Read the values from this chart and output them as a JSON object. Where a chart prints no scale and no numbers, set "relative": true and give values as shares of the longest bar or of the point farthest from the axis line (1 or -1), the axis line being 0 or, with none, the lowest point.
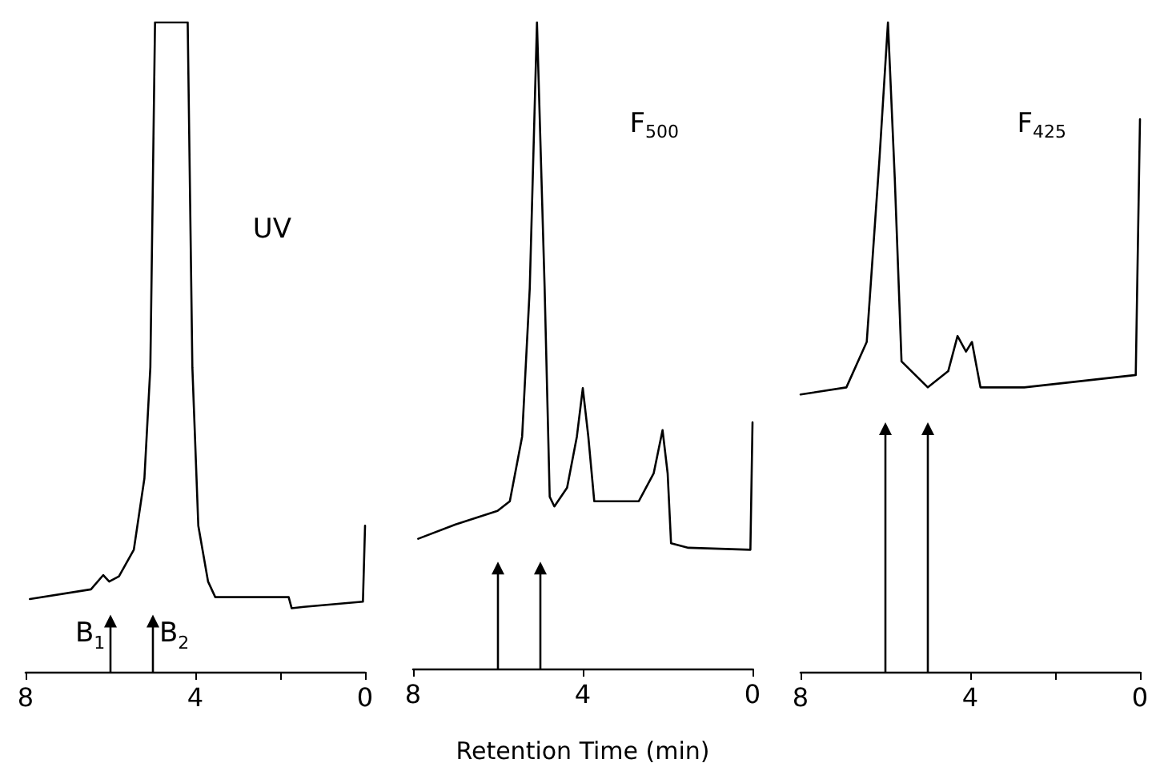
{
  "chart_data": [
    {
      "type": "line",
      "title": "UV",
      "relative": true,
      "marker": "none",
      "line_style": "solid",
      "xlim": [
        8,
        0
      ],
      "xticks": [
        8,
        4,
        {
          "value": 2,
          "label": null
        },
        0
      ],
      "ref_lines": [
        {
          "axis": "x",
          "value": 6.0,
          "label": "B$_{1}$"
        },
        {
          "axis": "x",
          "value": 5.0,
          "label": "B$_{2}$"
        }
      ],
      "series": [
        {
          "color": "#000000",
          "x": [
            7.9,
            6.46,
            6.17,
            6.03,
            5.8,
            5.45,
            5.2,
            5.06,
            4.95,
            4.18,
            4.07,
            3.93,
            3.7,
            3.53,
            1.8,
            1.73,
            1.44,
            0.05,
            0.0
          ],
          "values": [
            0.112,
            0.127,
            0.149,
            0.139,
            0.147,
            0.188,
            0.298,
            0.469,
            1.0,
            1.0,
            0.469,
            0.225,
            0.139,
            0.115,
            0.115,
            0.098,
            0.1,
            0.108,
            0.225
          ]
        }
      ]
    },
    {
      "type": "line",
      "title": "F$_{500}$",
      "xlabel": "Retention Time (min)",
      "relative": true,
      "marker": "none",
      "line_style": "solid",
      "xlim": [
        8,
        0
      ],
      "xticks": [
        8,
        4,
        0
      ],
      "ref_lines": [
        {
          "axis": "x",
          "value": 6.0
        },
        {
          "axis": "x",
          "value": 5.0
        }
      ],
      "series": [
        {
          "color": "#000000",
          "x": [
            7.88,
            7.0,
            6.01,
            5.72,
            5.43,
            5.25,
            5.08,
            4.9,
            4.78,
            4.67,
            4.37,
            4.14,
            4.0,
            3.87,
            3.73,
            2.68,
            2.33,
            2.12,
            2.0,
            1.92,
            1.51,
            0.05,
            0.0
          ],
          "values": [
            0.201,
            0.223,
            0.244,
            0.259,
            0.359,
            0.589,
            1.0,
            0.59,
            0.266,
            0.251,
            0.28,
            0.359,
            0.434,
            0.359,
            0.259,
            0.259,
            0.302,
            0.369,
            0.302,
            0.194,
            0.187,
            0.184,
            0.381
          ]
        }
      ]
    },
    {
      "type": "line",
      "title": "F$_{425}$",
      "relative": true,
      "marker": "none",
      "line_style": "solid",
      "xlim": [
        8,
        0
      ],
      "xticks": [
        8,
        4,
        {
          "value": 2,
          "label": null
        },
        0
      ],
      "ref_lines": [
        {
          "axis": "x",
          "value": 6.0
        },
        {
          "axis": "x",
          "value": 5.0
        }
      ],
      "series": [
        {
          "color": "#000000",
          "x": [
            8.0,
            6.92,
            6.44,
            6.14,
            5.94,
            5.78,
            5.62,
            5.0,
            4.52,
            4.3,
            4.1,
            3.96,
            3.76,
            2.73,
            0.1,
            0.0
          ],
          "values": [
            0.427,
            0.438,
            0.508,
            0.79,
            1.0,
            0.761,
            0.478,
            0.438,
            0.463,
            0.517,
            0.493,
            0.508,
            0.438,
            0.438,
            0.457,
            0.851
          ]
        }
      ]
    }
  ]
}
